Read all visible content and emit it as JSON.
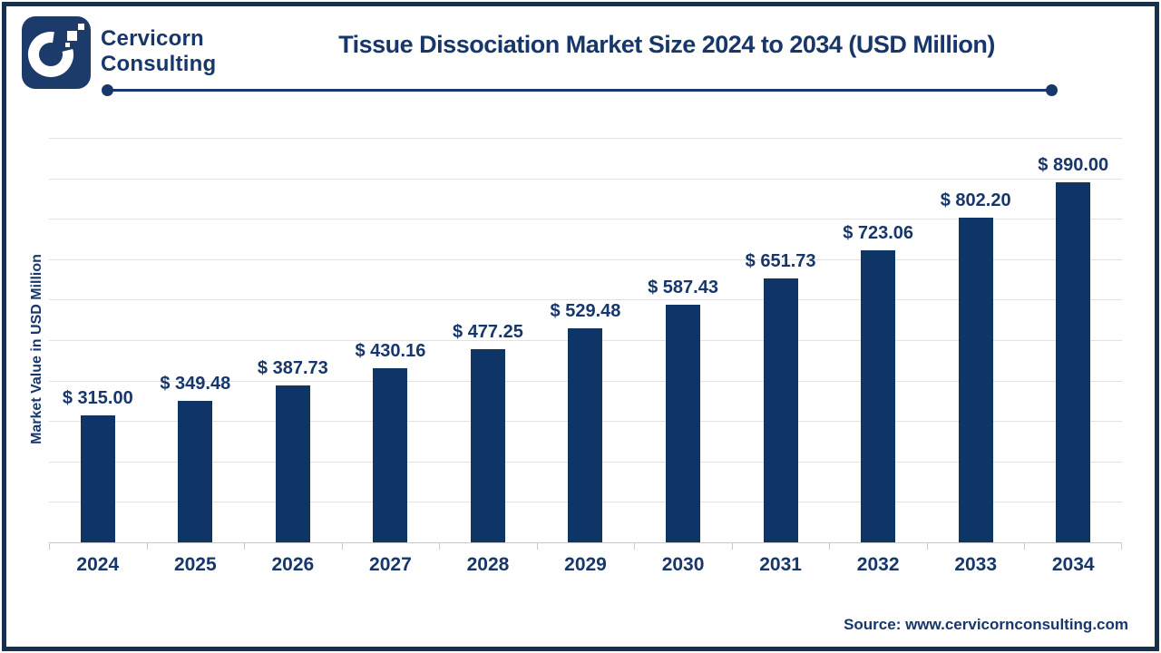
{
  "header": {
    "brand_line1": "Cervicorn",
    "brand_line2": "Consulting",
    "title": "Tissue Dissociation Market Size 2024 to 2034 (USD Million)"
  },
  "chart_data": {
    "type": "bar",
    "title": "Tissue Dissociation Market Size 2024 to 2034 (USD Million)",
    "categories": [
      "2024",
      "2025",
      "2026",
      "2027",
      "2028",
      "2029",
      "2030",
      "2031",
      "2032",
      "2033",
      "2034"
    ],
    "values": [
      315.0,
      349.48,
      387.73,
      430.16,
      477.25,
      529.48,
      587.43,
      651.73,
      723.06,
      802.2,
      890.0
    ],
    "value_labels": [
      "$ 315.00",
      "$ 349.48",
      "$ 387.73",
      "$ 430.16",
      "$ 477.25",
      "$ 529.48",
      "$ 587.43",
      "$ 651.73",
      "$ 723.06",
      "$ 802.20",
      "$ 890.00"
    ],
    "xlabel": "",
    "ylabel": "Market Value in USD Million",
    "ylim": [
      0,
      1000
    ],
    "gridline_step": 100,
    "grid": true,
    "legend": "none",
    "bar_color": "#0e3566"
  },
  "footer": {
    "source": "Source: www.cervicornconsulting.com"
  },
  "colors": {
    "navy_text": "#17376b",
    "navy_bar": "#0e3566",
    "frame": "#14304d",
    "gridline": "#e2e2e2"
  }
}
